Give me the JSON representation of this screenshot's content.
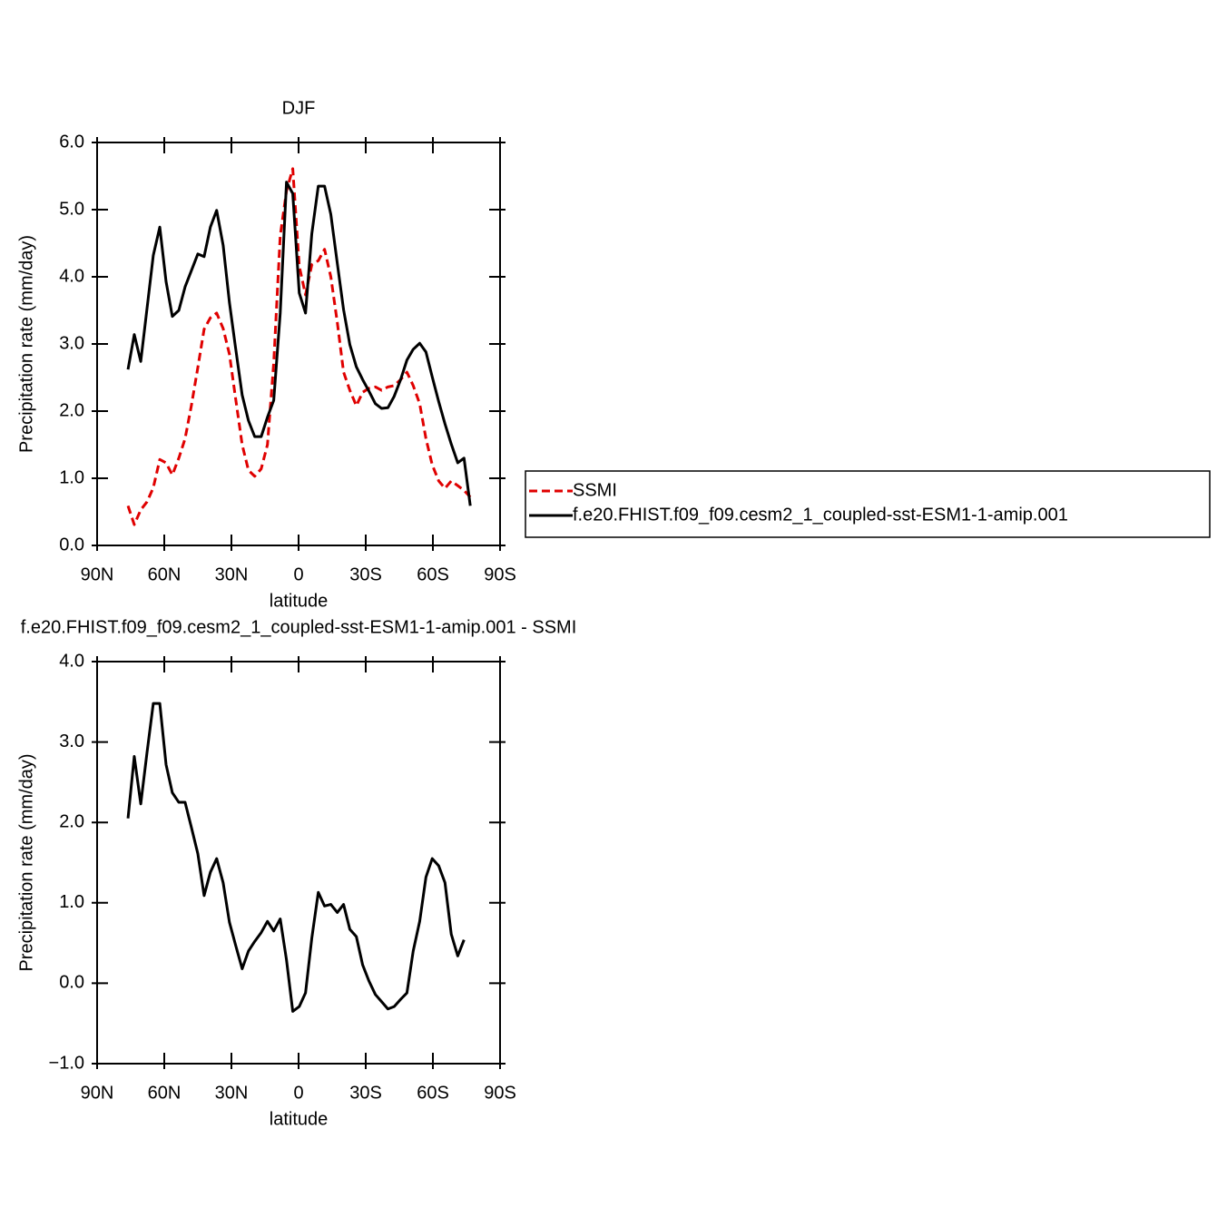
{
  "chart_data": [
    {
      "type": "line",
      "title": "DJF",
      "xlabel": "latitude",
      "ylabel": "Precipitation rate (mm/day)",
      "xlim": [
        90,
        -90
      ],
      "xticks": [
        {
          "value": 90,
          "label": "90N"
        },
        {
          "value": 60,
          "label": "60N"
        },
        {
          "value": 30,
          "label": "30N"
        },
        0,
        {
          "value": -30,
          "label": "30S"
        },
        {
          "value": -60,
          "label": "60S"
        },
        {
          "value": -90,
          "label": "90S"
        }
      ],
      "ylim": [
        0,
        6
      ],
      "yticks": [
        {
          "value": 0,
          "label": "0.0"
        },
        {
          "value": 1,
          "label": "1.0"
        },
        {
          "value": 2,
          "label": "2.0"
        },
        {
          "value": 3,
          "label": "3.0"
        },
        {
          "value": 4,
          "label": "4.0"
        },
        {
          "value": 5,
          "label": "5.0"
        },
        {
          "value": 6,
          "label": "6.0"
        }
      ],
      "legend": "right",
      "x": [
        76.2,
        73.4,
        70.5,
        67.7,
        64.9,
        62.0,
        59.2,
        56.4,
        53.5,
        50.7,
        47.9,
        45.0,
        42.2,
        39.4,
        36.6,
        33.7,
        30.9,
        28.1,
        25.2,
        22.4,
        19.6,
        16.7,
        13.9,
        11.1,
        8.2,
        5.4,
        2.6,
        -0.3,
        -3.1,
        -5.9,
        -8.8,
        -11.6,
        -14.4,
        -17.3,
        -20.1,
        -22.9,
        -25.8,
        -28.6,
        -31.4,
        -34.3,
        -37.1,
        -39.9,
        -42.7,
        -45.6,
        -48.4,
        -51.2,
        -54.1,
        -56.9,
        -59.7,
        -62.6,
        -65.4,
        -68.2,
        -71.1,
        -73.9,
        -76.7
      ],
      "series": [
        {
          "name": "SSMI",
          "color": "#e00000",
          "dashed": true,
          "values": [
            0.59,
            0.31,
            0.53,
            0.65,
            0.86,
            1.28,
            1.23,
            1.05,
            1.3,
            1.59,
            2.08,
            2.65,
            3.22,
            3.39,
            3.46,
            3.23,
            2.85,
            2.18,
            1.5,
            1.12,
            1.03,
            1.14,
            1.5,
            2.72,
            4.61,
            5.28,
            5.61,
            4.16,
            3.73,
            4.18,
            4.24,
            4.41,
            4.0,
            3.32,
            2.58,
            2.31,
            2.08,
            2.28,
            2.34,
            2.36,
            2.31,
            2.36,
            2.38,
            2.47,
            2.58,
            2.38,
            2.11,
            1.59,
            1.2,
            0.96,
            0.85,
            0.96,
            0.89,
            0.82,
            0.72
          ]
        },
        {
          "name": "f.e20.FHIST.f09_f09.cesm2_1_coupled-sst-ESM1-1-amip.001",
          "color": "#000000",
          "dashed": false,
          "values": [
            2.62,
            3.14,
            2.74,
            3.53,
            4.32,
            4.74,
            3.93,
            3.41,
            3.5,
            3.85,
            4.09,
            4.34,
            4.3,
            4.74,
            4.99,
            4.47,
            3.62,
            2.93,
            2.24,
            1.86,
            1.62,
            1.62,
            1.91,
            2.16,
            3.46,
            5.41,
            5.24,
            3.76,
            3.46,
            4.64,
            5.35,
            5.35,
            4.93,
            4.2,
            3.51,
            2.99,
            2.66,
            2.47,
            2.3,
            2.11,
            2.04,
            2.05,
            2.22,
            2.47,
            2.76,
            2.92,
            3.01,
            2.88,
            2.51,
            2.14,
            1.81,
            1.51,
            1.23,
            1.3,
            0.59
          ]
        }
      ]
    },
    {
      "type": "line",
      "title": "f.e20.FHIST.f09_f09.cesm2_1_coupled-sst-ESM1-1-amip.001 - SSMI",
      "xlabel": "latitude",
      "ylabel": "Precipitation rate (mm/day)",
      "xlim": [
        90,
        -90
      ],
      "xticks": [
        {
          "value": 90,
          "label": "90N"
        },
        {
          "value": 60,
          "label": "60N"
        },
        {
          "value": 30,
          "label": "30N"
        },
        0,
        {
          "value": -30,
          "label": "30S"
        },
        {
          "value": -60,
          "label": "60S"
        },
        {
          "value": -90,
          "label": "90S"
        }
      ],
      "ylim": [
        -1,
        4
      ],
      "yticks": [
        {
          "value": -1,
          "label": "−1.0"
        },
        {
          "value": 0,
          "label": "0.0"
        },
        {
          "value": 1,
          "label": "1.0"
        },
        {
          "value": 2,
          "label": "2.0"
        },
        {
          "value": 3,
          "label": "3.0"
        },
        {
          "value": 4,
          "label": "4.0"
        }
      ],
      "x": [
        76.2,
        73.4,
        70.5,
        67.7,
        64.9,
        62.0,
        59.2,
        56.4,
        53.5,
        50.7,
        47.9,
        45.0,
        42.2,
        39.4,
        36.6,
        33.7,
        30.9,
        28.1,
        25.2,
        22.4,
        19.6,
        16.7,
        13.9,
        11.1,
        8.2,
        5.4,
        2.6,
        -0.3,
        -3.1,
        -5.9,
        -8.8,
        -11.6,
        -14.4,
        -17.3,
        -20.1,
        -22.9,
        -25.8,
        -28.6,
        -31.4,
        -34.3,
        -37.1,
        -39.9,
        -42.7,
        -45.6,
        -48.4,
        -51.2,
        -54.1,
        -56.9,
        -59.7,
        -62.6,
        -65.4,
        -68.2,
        -71.1,
        -73.9
      ],
      "series": [
        {
          "color": "#000000",
          "dashed": false,
          "values": [
            2.05,
            2.82,
            2.23,
            2.87,
            3.48,
            3.48,
            2.72,
            2.37,
            2.25,
            2.25,
            1.94,
            1.61,
            1.09,
            1.38,
            1.55,
            1.25,
            0.76,
            0.47,
            0.18,
            0.4,
            0.52,
            0.63,
            0.77,
            0.65,
            0.8,
            0.29,
            -0.35,
            -0.29,
            -0.12,
            0.56,
            1.13,
            0.96,
            0.98,
            0.88,
            0.98,
            0.67,
            0.58,
            0.23,
            0.03,
            -0.14,
            -0.23,
            -0.32,
            -0.29,
            -0.2,
            -0.12,
            0.4,
            0.77,
            1.32,
            1.55,
            1.46,
            1.25,
            0.61,
            0.34,
            0.54
          ]
        }
      ]
    }
  ]
}
